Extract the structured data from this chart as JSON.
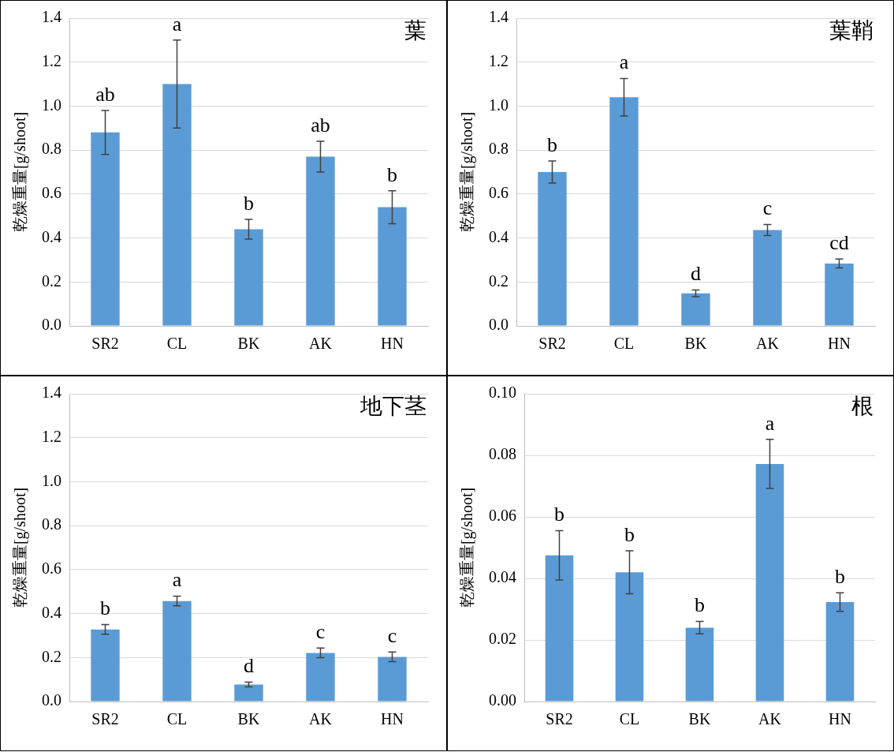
{
  "chart_data": [
    {
      "type": "bar",
      "title": "葉",
      "ylabel": "乾燥重量[g/shoot]",
      "categories": [
        "SR2",
        "CL",
        "BK",
        "AK",
        "HN"
      ],
      "color": "#5b9bd5",
      "values": [
        0.88,
        1.1,
        0.44,
        0.77,
        0.54
      ],
      "errors": [
        0.1,
        0.2,
        0.045,
        0.07,
        0.075
      ],
      "ylim": [
        0,
        1.4
      ],
      "yticks": [
        {
          "value": 0,
          "label": "0.0"
        },
        0.2,
        0.4,
        0.6,
        0.8,
        {
          "value": 1,
          "label": "1.0"
        },
        1.2,
        1.4
      ],
      "grid": "y",
      "annotations": [
        {
          "text": "ab",
          "x": "SR2",
          "y": 0.98
        },
        {
          "text": "a",
          "x": "CL",
          "y": 1.3
        },
        {
          "text": "b",
          "x": "BK",
          "y": 0.485
        },
        {
          "text": "ab",
          "x": "AK",
          "y": 0.84
        },
        {
          "text": "b",
          "x": "HN",
          "y": 0.615
        }
      ]
    },
    {
      "type": "bar",
      "title": "葉鞘",
      "ylabel": "乾燥重量[g/shoot]",
      "categories": [
        "SR2",
        "CL",
        "BK",
        "AK",
        "HN"
      ],
      "color": "#5b9bd5",
      "values": [
        0.7,
        1.04,
        0.148,
        0.436,
        0.284
      ],
      "errors": [
        0.05,
        0.085,
        0.015,
        0.025,
        0.02
      ],
      "ylim": [
        0,
        1.4
      ],
      "yticks": [
        {
          "value": 0,
          "label": "0.0"
        },
        0.2,
        0.4,
        0.6,
        0.8,
        {
          "value": 1,
          "label": "1.0"
        },
        1.2,
        1.4
      ],
      "grid": "y",
      "annotations": [
        {
          "text": "b",
          "x": "SR2",
          "y": 0.75
        },
        {
          "text": "a",
          "x": "CL",
          "y": 1.125
        },
        {
          "text": "d",
          "x": "BK",
          "y": 0.163
        },
        {
          "text": "c",
          "x": "AK",
          "y": 0.461
        },
        {
          "text": "cd",
          "x": "HN",
          "y": 0.304
        }
      ]
    },
    {
      "type": "bar",
      "title": "地下茎",
      "ylabel": "乾燥重量[g/shoot]",
      "categories": [
        "SR2",
        "CL",
        "BK",
        "AK",
        "HN"
      ],
      "color": "#5b9bd5",
      "values": [
        0.328,
        0.457,
        0.077,
        0.221,
        0.203
      ],
      "errors": [
        0.022,
        0.022,
        0.011,
        0.022,
        0.022
      ],
      "ylim": [
        0,
        1.4
      ],
      "yticks": [
        {
          "value": 0,
          "label": "0.0"
        },
        0.2,
        0.4,
        0.6,
        0.8,
        {
          "value": 1,
          "label": "1.0"
        },
        1.2,
        1.4
      ],
      "grid": "y",
      "annotations": [
        {
          "text": "b",
          "x": "SR2",
          "y": 0.35
        },
        {
          "text": "a",
          "x": "CL",
          "y": 0.479
        },
        {
          "text": "d",
          "x": "BK",
          "y": 0.088
        },
        {
          "text": "c",
          "x": "AK",
          "y": 0.243
        },
        {
          "text": "c",
          "x": "HN",
          "y": 0.225
        }
      ]
    },
    {
      "type": "bar",
      "title": "根",
      "ylabel": "乾燥重量[g/shoot]",
      "categories": [
        "SR2",
        "CL",
        "BK",
        "AK",
        "HN"
      ],
      "color": "#5b9bd5",
      "values": [
        0.0475,
        0.042,
        0.024,
        0.0772,
        0.0323
      ],
      "errors": [
        0.008,
        0.007,
        0.002,
        0.008,
        0.003
      ],
      "ylim": [
        0,
        0.1
      ],
      "yticks": [
        {
          "value": 0,
          "label": "0.00"
        },
        {
          "value": 0.02,
          "label": "0.02"
        },
        {
          "value": 0.04,
          "label": "0.04"
        },
        {
          "value": 0.06,
          "label": "0.06"
        },
        {
          "value": 0.08,
          "label": "0.08"
        },
        {
          "value": 0.1,
          "label": "0.10"
        }
      ],
      "grid": "y",
      "annotations": [
        {
          "text": "b",
          "x": "SR2",
          "y": 0.0555
        },
        {
          "text": "b",
          "x": "CL",
          "y": 0.049
        },
        {
          "text": "b",
          "x": "BK",
          "y": 0.026
        },
        {
          "text": "a",
          "x": "AK",
          "y": 0.0852
        },
        {
          "text": "b",
          "x": "HN",
          "y": 0.0353
        }
      ]
    }
  ]
}
